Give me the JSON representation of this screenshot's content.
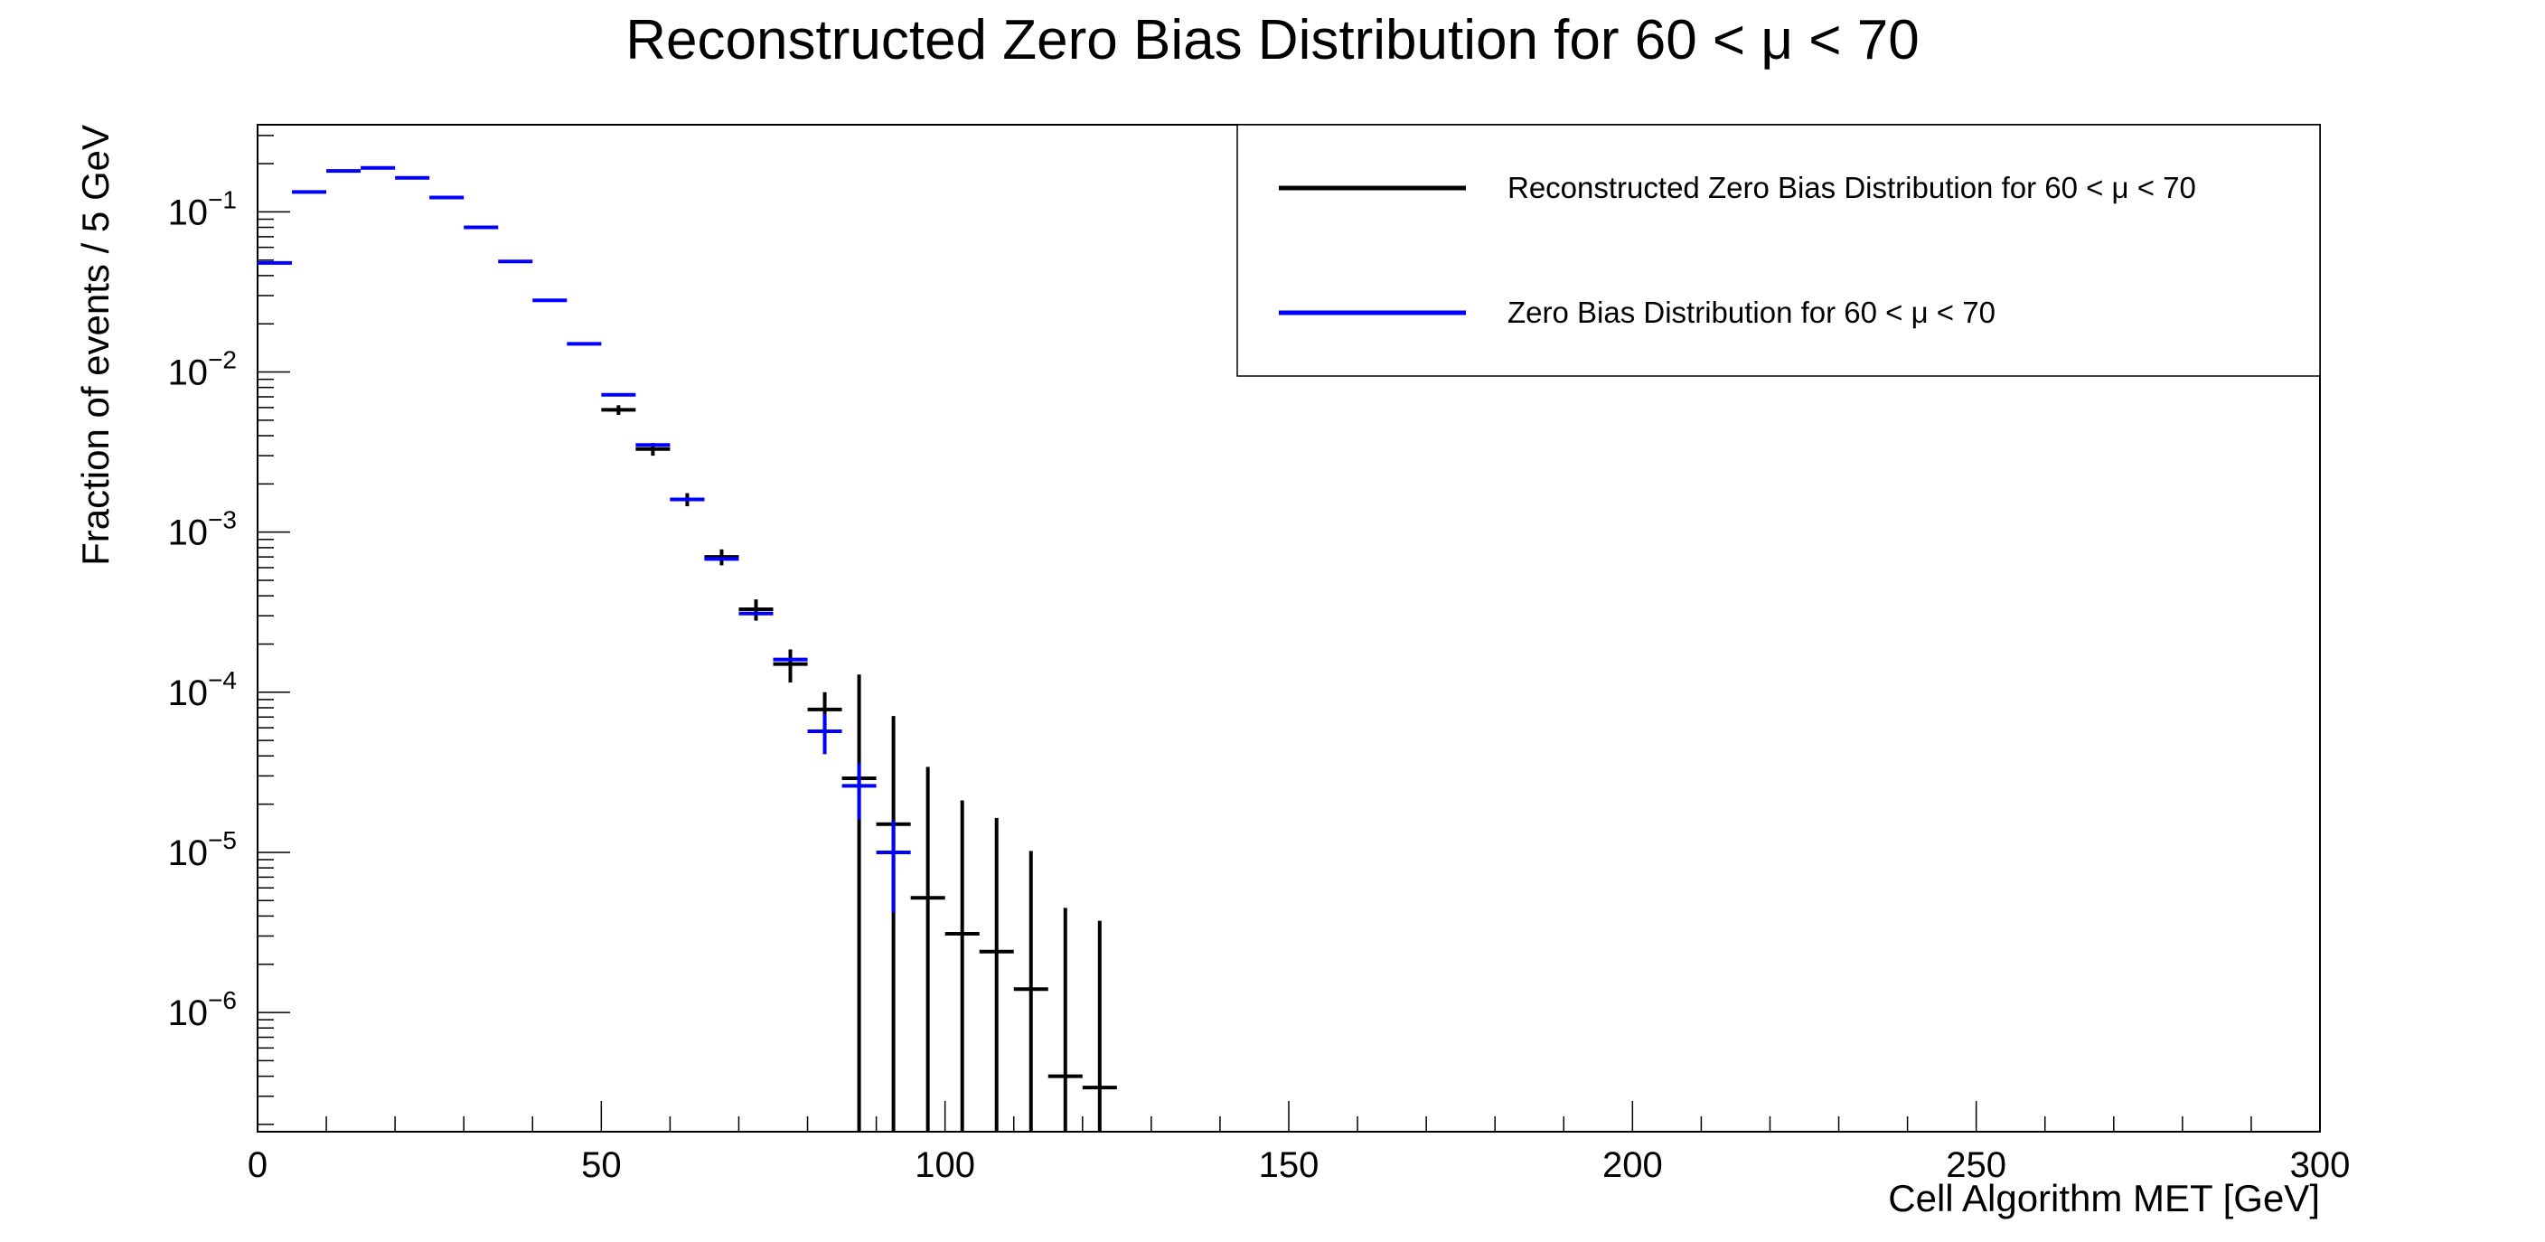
{
  "chart_data": {
    "type": "scatter",
    "title": "Reconstructed Zero Bias Distribution for 60 < μ < 70",
    "xlabel": "Cell Algorithm MET [GeV]",
    "ylabel": "Fraction of events / 5 GeV",
    "xlim": [
      0,
      300
    ],
    "ylim": [
      1.8e-07,
      0.35
    ],
    "yscale": "log",
    "grid": false,
    "legend_position": "top-right",
    "x_ticks": [
      {
        "value": 0,
        "label": "0"
      },
      {
        "value": 50,
        "label": "50"
      },
      {
        "value": 100,
        "label": "100"
      },
      {
        "value": 150,
        "label": "150"
      },
      {
        "value": 200,
        "label": "200"
      },
      {
        "value": 250,
        "label": "250"
      },
      {
        "value": 300,
        "label": "300"
      }
    ],
    "y_ticks": [
      {
        "value": 1e-06,
        "base": "10",
        "exp": "−6"
      },
      {
        "value": 1e-05,
        "base": "10",
        "exp": "−5"
      },
      {
        "value": 0.0001,
        "base": "10",
        "exp": "−4"
      },
      {
        "value": 0.001,
        "base": "10",
        "exp": "−3"
      },
      {
        "value": 0.01,
        "base": "10",
        "exp": "−2"
      },
      {
        "value": 0.1,
        "base": "10",
        "exp": "−1"
      }
    ],
    "bin_width": 5,
    "series": [
      {
        "name": "Reconstructed Zero Bias Distribution for 60 < μ < 70",
        "color": "#000000",
        "points": [
          {
            "x": 52.5,
            "y": 0.0058,
            "err": 0.0004
          },
          {
            "x": 57.5,
            "y": 0.0033,
            "err": 0.0003
          },
          {
            "x": 62.5,
            "y": 0.0016,
            "err": 0.00015
          },
          {
            "x": 67.5,
            "y": 0.0007,
            "err": 8e-05
          },
          {
            "x": 72.5,
            "y": 0.00033,
            "err": 5e-05
          },
          {
            "x": 77.5,
            "y": 0.00015,
            "err": 3.5e-05
          },
          {
            "x": 82.5,
            "y": 7.8e-05,
            "err": 2.2e-05
          },
          {
            "x": 87.5,
            "y": 2.9e-05,
            "err": 0.0001
          },
          {
            "x": 92.5,
            "y": 1.5e-05,
            "err": 5.6e-05
          },
          {
            "x": 97.5,
            "y": 5.2e-06,
            "err": 2.9e-05
          },
          {
            "x": 102.5,
            "y": 3.1e-06,
            "err": 1.8e-05
          },
          {
            "x": 107.5,
            "y": 2.4e-06,
            "err": 1.4e-05
          },
          {
            "x": 112.5,
            "y": 1.4e-06,
            "err": 8.8e-06
          },
          {
            "x": 117.5,
            "y": 4e-07,
            "err": 4.1e-06
          },
          {
            "x": 122.5,
            "y": 3.4e-07,
            "err": 3.4e-06
          }
        ]
      },
      {
        "name": "Zero Bias Distribution for 60 < μ < 70",
        "color": "#0000ff",
        "points": [
          {
            "x": 2.5,
            "y": 0.048,
            "err": 0
          },
          {
            "x": 7.5,
            "y": 0.133,
            "err": 0
          },
          {
            "x": 12.5,
            "y": 0.18,
            "err": 0
          },
          {
            "x": 17.5,
            "y": 0.188,
            "err": 0
          },
          {
            "x": 22.5,
            "y": 0.163,
            "err": 0
          },
          {
            "x": 27.5,
            "y": 0.123,
            "err": 0
          },
          {
            "x": 32.5,
            "y": 0.08,
            "err": 0
          },
          {
            "x": 37.5,
            "y": 0.049,
            "err": 0
          },
          {
            "x": 42.5,
            "y": 0.028,
            "err": 0
          },
          {
            "x": 47.5,
            "y": 0.015,
            "err": 0
          },
          {
            "x": 52.5,
            "y": 0.0072,
            "err": 0
          },
          {
            "x": 57.5,
            "y": 0.0035,
            "err": 0
          },
          {
            "x": 62.5,
            "y": 0.0016,
            "err": 0
          },
          {
            "x": 67.5,
            "y": 0.00068,
            "err": 0
          },
          {
            "x": 72.5,
            "y": 0.00031,
            "err": 0
          },
          {
            "x": 77.5,
            "y": 0.00016,
            "err": 0
          },
          {
            "x": 82.5,
            "y": 5.7e-05,
            "err": 1.6e-05
          },
          {
            "x": 87.5,
            "y": 2.6e-05,
            "err": 1e-05
          },
          {
            "x": 92.5,
            "y": 1e-05,
            "err": 5.8e-06
          }
        ]
      }
    ]
  }
}
